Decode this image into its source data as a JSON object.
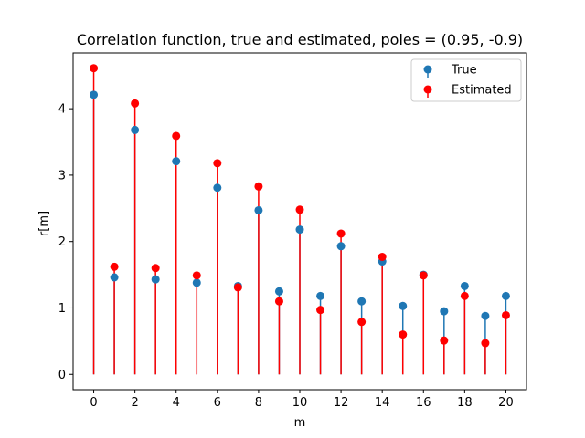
{
  "chart_data": {
    "type": "stem",
    "title": "Correlation function, true and estimated, poles = (0.95, -0.9)",
    "xlabel": "m",
    "ylabel": "r[m]",
    "xlim": [
      -1,
      21
    ],
    "ylim": [
      -0.23,
      4.84
    ],
    "xticks": [
      0,
      2,
      4,
      6,
      8,
      10,
      12,
      14,
      16,
      18,
      20
    ],
    "yticks": [
      0,
      1,
      2,
      3,
      4
    ],
    "legend_position": "top-right",
    "x": [
      0,
      1,
      2,
      3,
      4,
      5,
      6,
      7,
      8,
      9,
      10,
      11,
      12,
      13,
      14,
      15,
      16,
      17,
      18,
      19,
      20
    ],
    "series": [
      {
        "name": "True",
        "color": "#1f77b4",
        "values": [
          4.21,
          1.46,
          3.68,
          1.43,
          3.21,
          1.38,
          2.81,
          1.33,
          2.47,
          1.25,
          2.18,
          1.18,
          1.93,
          1.1,
          1.7,
          1.03,
          1.5,
          0.95,
          1.33,
          0.88,
          1.18
        ]
      },
      {
        "name": "Estimated",
        "color": "#ff0000",
        "values": [
          4.61,
          1.62,
          4.08,
          1.6,
          3.59,
          1.49,
          3.18,
          1.31,
          2.83,
          1.1,
          2.48,
          0.97,
          2.12,
          0.79,
          1.77,
          0.6,
          1.49,
          0.51,
          1.18,
          0.47,
          0.89
        ]
      }
    ]
  }
}
